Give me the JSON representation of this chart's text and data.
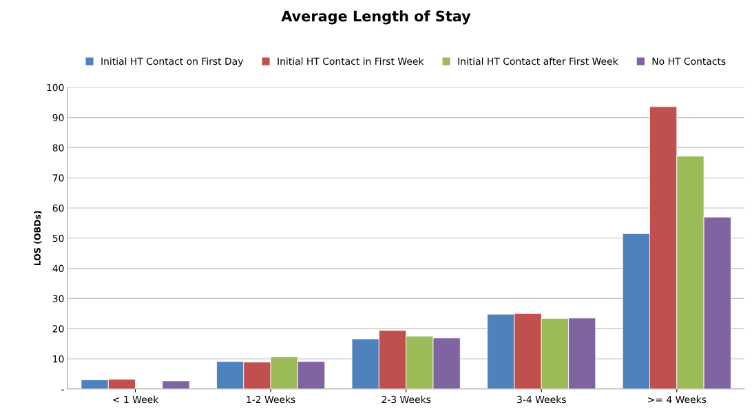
{
  "chart_data": {
    "type": "bar",
    "title": "Average Length of Stay",
    "ylabel": "LOS (OBDs)",
    "categories": [
      "< 1 Week",
      "1-2 Weeks",
      "2-3 Weeks",
      "3-4 Weeks",
      ">= 4 Weeks"
    ],
    "series": [
      {
        "name": "Initial HT Contact on First Day",
        "color": "#4f81bd",
        "values": [
          3.0,
          9.1,
          16.6,
          24.8,
          51.5
        ]
      },
      {
        "name": "Initial HT Contact in First Week",
        "color": "#c0504d",
        "values": [
          3.2,
          8.9,
          19.4,
          25.0,
          93.6
        ]
      },
      {
        "name": "Initial HT Contact after First Week",
        "color": "#9bbb59",
        "values": [
          null,
          10.7,
          17.5,
          23.4,
          77.2
        ]
      },
      {
        "name": "No HT Contacts",
        "color": "#8064a2",
        "values": [
          2.7,
          9.1,
          16.9,
          23.5,
          57.0
        ]
      }
    ],
    "ylim": [
      0,
      100
    ],
    "yticks": [
      {
        "value": 0,
        "label": "-"
      },
      10,
      20,
      30,
      40,
      50,
      60,
      70,
      80,
      90,
      100
    ],
    "grid": "y",
    "legend": "top"
  }
}
